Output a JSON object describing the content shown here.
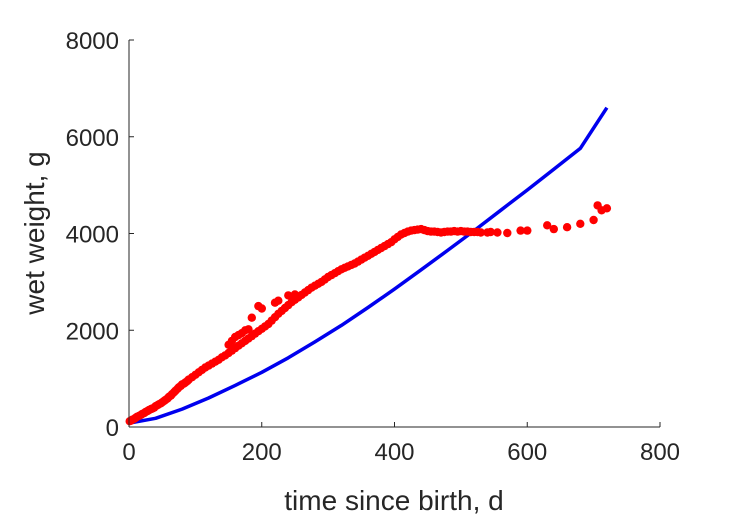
{
  "chart_data": {
    "type": "scatter",
    "xlabel": "time since birth, d",
    "ylabel": "wet weight, g",
    "xlim": [
      0,
      800
    ],
    "ylim": [
      0,
      8000
    ],
    "xticks": [
      "0",
      "200",
      "400",
      "600",
      "800"
    ],
    "yticks": [
      "0",
      "2000",
      "4000",
      "6000",
      "8000"
    ],
    "grid": false,
    "legend": "none",
    "colors": {
      "model": "#0000ee",
      "data": "#ff0000",
      "axis": "#262626"
    },
    "series": [
      {
        "kind": "line",
        "x": [
          0,
          40,
          80,
          120,
          160,
          200,
          240,
          280,
          320,
          360,
          400,
          440,
          480,
          520,
          560,
          600,
          640,
          680,
          720
        ],
        "y": [
          80,
          180,
          370,
          600,
          860,
          1130,
          1430,
          1760,
          2100,
          2470,
          2850,
          3250,
          3650,
          4060,
          4480,
          4900,
          5330,
          5760,
          6600
        ]
      },
      {
        "kind": "scatter",
        "x": [
          1,
          3,
          5,
          8,
          10,
          12,
          15,
          18,
          20,
          23,
          25,
          28,
          30,
          33,
          35,
          38,
          40,
          43,
          45,
          48,
          50,
          53,
          55,
          58,
          60,
          63,
          65,
          68,
          70,
          73,
          75,
          78,
          80,
          83,
          85,
          88,
          90,
          95,
          100,
          105,
          110,
          115,
          120,
          125,
          130,
          135,
          140,
          145,
          150,
          155,
          160,
          165,
          170,
          175,
          180,
          185,
          190,
          195,
          200,
          205,
          210,
          215,
          220,
          225,
          230,
          235,
          240,
          245,
          250,
          255,
          260,
          265,
          270,
          275,
          280,
          285,
          290,
          295,
          300,
          305,
          310,
          315,
          320,
          325,
          330,
          335,
          340,
          345,
          350,
          355,
          360,
          365,
          370,
          375,
          380,
          385,
          390,
          395,
          400,
          405,
          410,
          415,
          420,
          425,
          430,
          435,
          440,
          445,
          450,
          455,
          460,
          465,
          470,
          475,
          480,
          485,
          490,
          495,
          500,
          505,
          510,
          515,
          520,
          525,
          530,
          540,
          545,
          555,
          570,
          590,
          600,
          630,
          640,
          660,
          680,
          700,
          706,
          712,
          720,
          150,
          155,
          160,
          165,
          170,
          175,
          180,
          185,
          195,
          200,
          240,
          250,
          220,
          225,
          245
        ],
        "y": [
          120,
          130,
          150,
          170,
          190,
          210,
          230,
          250,
          270,
          290,
          310,
          330,
          350,
          370,
          380,
          400,
          430,
          450,
          470,
          490,
          510,
          540,
          560,
          590,
          620,
          650,
          680,
          720,
          750,
          790,
          820,
          850,
          880,
          900,
          920,
          950,
          980,
          1030,
          1080,
          1130,
          1180,
          1230,
          1270,
          1310,
          1350,
          1390,
          1440,
          1480,
          1530,
          1580,
          1630,
          1680,
          1730,
          1780,
          1830,
          1880,
          1930,
          1980,
          2030,
          2080,
          2130,
          2200,
          2270,
          2340,
          2400,
          2460,
          2520,
          2580,
          2630,
          2680,
          2730,
          2780,
          2830,
          2880,
          2920,
          2960,
          3000,
          3050,
          3100,
          3140,
          3180,
          3220,
          3260,
          3290,
          3320,
          3350,
          3380,
          3420,
          3460,
          3500,
          3540,
          3580,
          3620,
          3660,
          3700,
          3740,
          3780,
          3820,
          3880,
          3930,
          3980,
          4010,
          4040,
          4060,
          4070,
          4080,
          4090,
          4070,
          4050,
          4040,
          4040,
          4030,
          4020,
          4030,
          4040,
          4040,
          4050,
          4040,
          4050,
          4040,
          4040,
          4030,
          4030,
          4030,
          4020,
          4020,
          4030,
          4020,
          4010,
          4060,
          4060,
          4170,
          4090,
          4130,
          4200,
          4280,
          4580,
          4480,
          4520,
          1700,
          1780,
          1860,
          1900,
          1940,
          2000,
          2020,
          2260,
          2500,
          2450,
          2720,
          2740,
          2570,
          2610,
          2690
        ]
      }
    ]
  }
}
